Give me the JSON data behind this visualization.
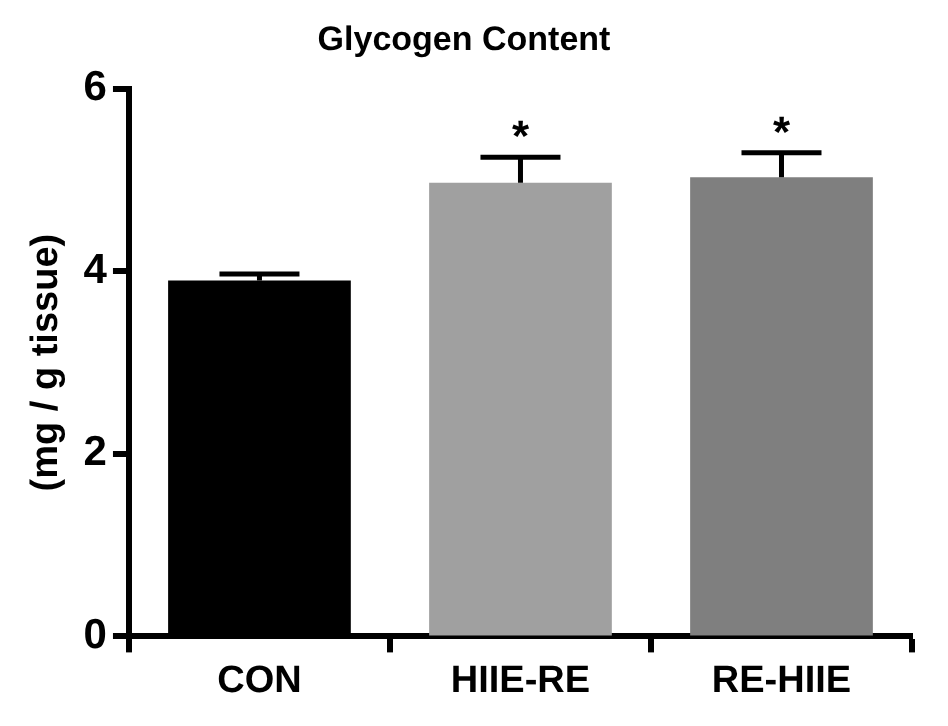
{
  "chart_data": {
    "type": "bar",
    "title": "Glycogen Content",
    "ylabel": "(mg / g tissue)",
    "categories": [
      "CON",
      "HIIE-RE",
      "RE-HIIE"
    ],
    "values": [
      3.9,
      4.97,
      5.03
    ],
    "errors": [
      [
        3.9,
        3.97
      ],
      [
        4.97,
        5.25
      ],
      [
        5.03,
        5.3
      ]
    ],
    "colors": [
      "#000000",
      "#a0a0a0",
      "#7f7f7f"
    ],
    "ylim": [
      0,
      6
    ],
    "yticks": [
      0,
      2,
      4,
      6
    ],
    "grid": false,
    "legend": false,
    "annotations": [
      {
        "text": "*",
        "x": "HIIE-RE",
        "y": 5.25
      },
      {
        "text": "*",
        "x": "RE-HIIE",
        "y": 5.3
      }
    ]
  }
}
